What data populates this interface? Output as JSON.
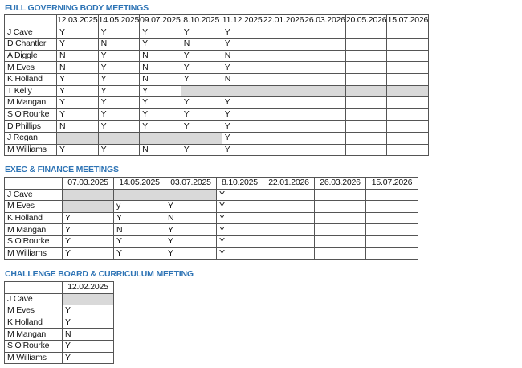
{
  "accent_color": "#2e74b5",
  "shade_color": "#d9d9d9",
  "shaded_cell_note": "null = shaded cell",
  "sections": [
    {
      "title": "FULL GOVERNING BODY MEETINGS",
      "dates": [
        "12.03.2025",
        "14.05.2025",
        "09.07.2025",
        "8.10.2025",
        "11.12.2025",
        "22.01.2026",
        "26.03.2026",
        "20.05.2026",
        "15.07.2026"
      ],
      "rows": [
        {
          "name": "J Cave",
          "cells": [
            "Y",
            "Y",
            "Y",
            "Y",
            "Y",
            "",
            "",
            "",
            ""
          ]
        },
        {
          "name": "D Chantler",
          "cells": [
            "Y",
            "N",
            "Y",
            "N",
            "Y",
            "",
            "",
            "",
            ""
          ]
        },
        {
          "name": "A Diggle",
          "cells": [
            "N",
            "Y",
            "N",
            "Y",
            "N",
            "",
            "",
            "",
            ""
          ]
        },
        {
          "name": "M Eves",
          "cells": [
            "N",
            "Y",
            "N",
            "Y",
            "Y",
            "",
            "",
            "",
            ""
          ]
        },
        {
          "name": "K Holland",
          "cells": [
            "Y",
            "Y",
            "N",
            "Y",
            "N",
            "",
            "",
            "",
            ""
          ]
        },
        {
          "name": "T Kelly",
          "cells": [
            "Y",
            "Y",
            "Y",
            null,
            null,
            null,
            null,
            null,
            null
          ]
        },
        {
          "name": "M Mangan",
          "cells": [
            "Y",
            "Y",
            "Y",
            "Y",
            "Y",
            "",
            "",
            "",
            ""
          ]
        },
        {
          "name": "S O’Rourke",
          "cells": [
            "Y",
            "Y",
            "Y",
            "Y",
            "Y",
            "",
            "",
            "",
            ""
          ]
        },
        {
          "name": "D Phillips",
          "cells": [
            "N",
            "Y",
            "Y",
            "Y",
            "Y",
            "",
            "",
            "",
            ""
          ]
        },
        {
          "name": "J Regan",
          "cells": [
            null,
            null,
            null,
            null,
            "Y",
            "",
            "",
            "",
            ""
          ]
        },
        {
          "name": "M Williams",
          "cells": [
            "Y",
            "Y",
            "N",
            "Y",
            "Y",
            "",
            "",
            "",
            ""
          ]
        }
      ]
    },
    {
      "title": "EXEC & FINANCE MEETINGS",
      "dates": [
        "07.03.2025",
        "14.05.2025",
        "03.07.2025",
        "8.10.2025",
        "22.01.2026",
        "26.03.2026",
        "15.07.2026"
      ],
      "rows": [
        {
          "name": "J Cave",
          "cells": [
            null,
            null,
            null,
            "Y",
            "",
            "",
            ""
          ]
        },
        {
          "name": "M Eves",
          "cells": [
            null,
            "y",
            "Y",
            "Y",
            "",
            "",
            ""
          ]
        },
        {
          "name": "K Holland",
          "cells": [
            "Y",
            "Y",
            "N",
            "Y",
            "",
            "",
            ""
          ]
        },
        {
          "name": "M Mangan",
          "cells": [
            "Y",
            "N",
            "Y",
            "Y",
            "",
            "",
            ""
          ]
        },
        {
          "name": "S O’Rourke",
          "cells": [
            "Y",
            "Y",
            "Y",
            "Y",
            "",
            "",
            ""
          ]
        },
        {
          "name": "M Williams",
          "cells": [
            "Y",
            "Y",
            "Y",
            "Y",
            "",
            "",
            ""
          ]
        }
      ]
    },
    {
      "title": "CHALLENGE BOARD & CURRICULUM MEETING",
      "dates": [
        "12.02.2025"
      ],
      "rows": [
        {
          "name": "J Cave",
          "cells": [
            null
          ]
        },
        {
          "name": "M Eves",
          "cells": [
            "Y"
          ]
        },
        {
          "name": "K Holland",
          "cells": [
            "Y"
          ]
        },
        {
          "name": "M Mangan",
          "cells": [
            "N"
          ]
        },
        {
          "name": "S O’Rourke",
          "cells": [
            "Y"
          ]
        },
        {
          "name": "M Williams",
          "cells": [
            "Y"
          ]
        }
      ]
    }
  ]
}
